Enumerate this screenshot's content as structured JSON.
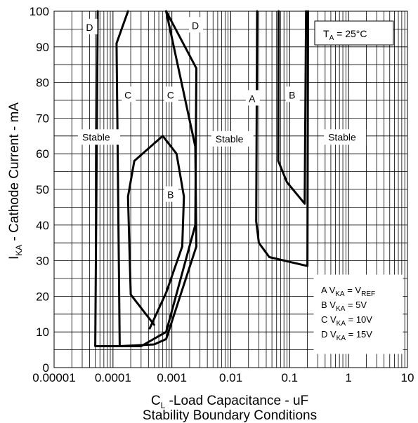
{
  "chart_data": {
    "type": "line",
    "xscale": "log",
    "xlim": [
      1e-05,
      10
    ],
    "ylim": [
      0,
      100
    ],
    "grid": true,
    "x_ticks": [
      "0.00001",
      "0.0001",
      "0.001",
      "0.01",
      "0.1",
      "1",
      "10"
    ],
    "y_ticks": [
      "0",
      "10",
      "20",
      "30",
      "40",
      "50",
      "60",
      "70",
      "80",
      "90",
      "100"
    ],
    "ylabel": {
      "main": "I",
      "sub": "KA",
      "rest": " - Cathode Current - mA"
    },
    "xlabel": {
      "main": "C",
      "sub": "L",
      "rest": " -Load Capacitance - uF"
    },
    "caption": "Stability Boundary Conditions",
    "annotation": {
      "main": "T",
      "sub": "A",
      "rest": " = 25°C"
    },
    "regions": [
      {
        "text": "Stable",
        "x": 3e-05,
        "y": 64.5
      },
      {
        "text": "Stable",
        "x": 0.0055,
        "y": 64
      },
      {
        "text": "Stable",
        "x": 0.45,
        "y": 64.5
      }
    ],
    "curve_labels": [
      {
        "text": "D",
        "x": 4e-05,
        "y": 95.5
      },
      {
        "text": "C",
        "x": 0.00018,
        "y": 76.5
      },
      {
        "text": "C",
        "x": 0.00095,
        "y": 76.5
      },
      {
        "text": "D",
        "x": 0.0025,
        "y": 96
      },
      {
        "text": "B",
        "x": 0.00095,
        "y": 48.5
      },
      {
        "text": "A",
        "x": 0.023,
        "y": 75.5
      },
      {
        "text": "B",
        "x": 0.11,
        "y": 76.5
      }
    ],
    "legend": [
      {
        "key": "A",
        "sub": "KA",
        "eq": " = V",
        "val": "",
        "val_sub": "REF"
      },
      {
        "key": "B",
        "sub": "KA",
        "eq": " = 5V",
        "val": "",
        "val_sub": ""
      },
      {
        "key": "C",
        "sub": "KA",
        "eq": " = 10V",
        "val": "",
        "val_sub": ""
      },
      {
        "key": "D",
        "sub": "KA",
        "eq": " = 15V",
        "val": "",
        "val_sub": ""
      }
    ],
    "series": [
      {
        "points": [
          [
            5.5e-05,
            100
          ],
          [
            5e-05,
            6
          ],
          [
            0.0003,
            6
          ],
          [
            0.0008,
            10
          ],
          [
            0.0025,
            40
          ],
          [
            0.0026,
            84
          ],
          [
            0.0008,
            100
          ]
        ]
      },
      {
        "points": [
          [
            0.00013,
            6
          ],
          [
            0.000115,
            91
          ],
          [
            0.00018,
            100
          ]
        ]
      },
      {
        "points": [
          [
            0.00013,
            6
          ],
          [
            0.0005,
            6.5
          ],
          [
            0.0008,
            8
          ],
          [
            0.0026,
            34
          ],
          [
            0.0025,
            62
          ],
          [
            0.0008,
            100
          ]
        ]
      },
      {
        "points": [
          [
            0.0005,
            12
          ],
          [
            0.0002,
            20.5
          ],
          [
            0.00018,
            48
          ],
          [
            0.00023,
            58
          ],
          [
            0.0007,
            65
          ],
          [
            0.0012,
            60
          ],
          [
            0.0016,
            48
          ],
          [
            0.0015,
            34
          ],
          [
            0.0008,
            21
          ],
          [
            0.00042,
            11
          ]
        ]
      },
      {
        "points": [
          [
            0.028,
            100
          ],
          [
            0.027,
            41
          ],
          [
            0.03,
            35
          ],
          [
            0.045,
            31
          ],
          [
            0.2,
            28.5
          ],
          [
            0.205,
            100
          ]
        ]
      },
      {
        "points": [
          [
            0.065,
            100
          ],
          [
            0.064,
            58
          ],
          [
            0.09,
            52
          ],
          [
            0.18,
            46
          ],
          [
            0.19,
            100
          ]
        ]
      }
    ]
  }
}
